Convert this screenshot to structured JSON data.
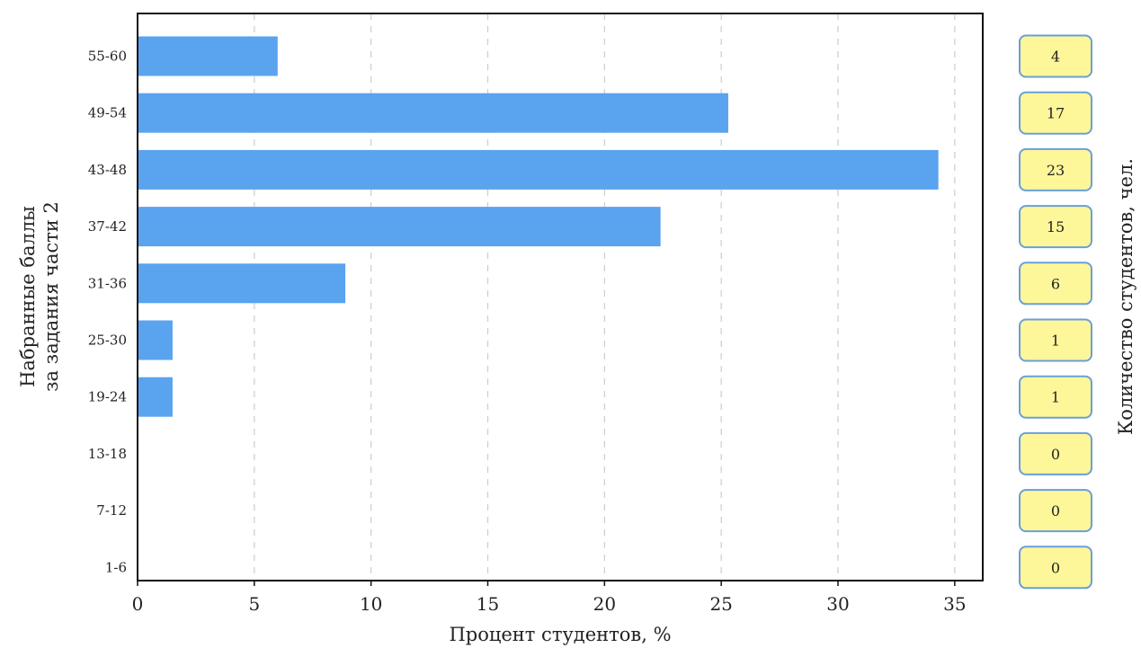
{
  "chart_data": {
    "type": "bar",
    "orientation": "horizontal",
    "categories": [
      "55-60",
      "49-54",
      "43-48",
      "37-42",
      "31-36",
      "25-30",
      "19-24",
      "13-18",
      "7-12",
      "1-6"
    ],
    "values": [
      6.0,
      25.3,
      34.3,
      22.4,
      8.9,
      1.5,
      1.5,
      0,
      0,
      0
    ],
    "counts": [
      4,
      17,
      23,
      15,
      6,
      1,
      1,
      0,
      0,
      0
    ],
    "xlabel": "Процент студентов, %",
    "ylabel": [
      "Набранные баллы",
      "за задания части 2"
    ],
    "right_label": "Количество студентов, чел.",
    "xlim": [
      0,
      36.2
    ],
    "xticks": [
      0,
      5,
      10,
      15,
      20,
      25,
      30,
      35
    ],
    "grid": "vertical dashed",
    "colors": {
      "bar": "#5aa3ef",
      "count_box_fill": "#fdf79a",
      "count_box_border": "#6a9fd8",
      "grid": "#cccccc"
    }
  }
}
